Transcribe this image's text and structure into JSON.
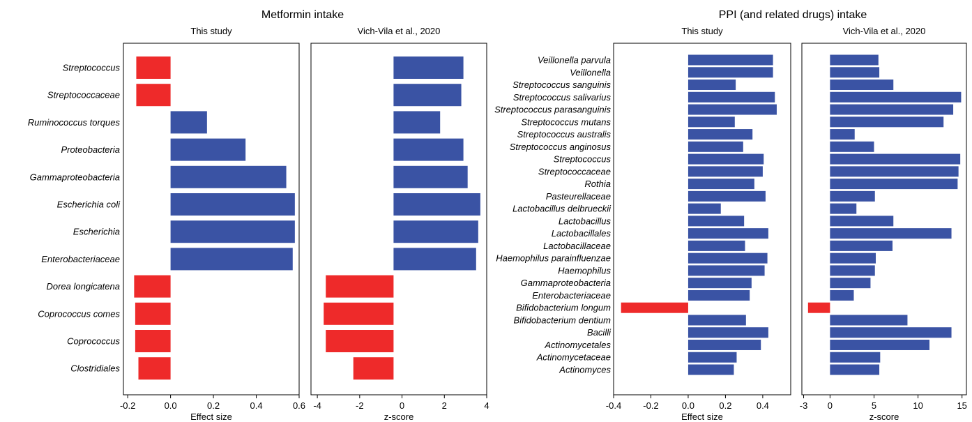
{
  "figure": {
    "left_title": "Metformin intake",
    "right_title": "PPI (and related drugs) intake"
  },
  "colors": {
    "positive": "#3a53a4",
    "negative": "#ee2a2a",
    "frame": "#000000"
  },
  "chart_data": [
    {
      "type": "bar",
      "orientation": "horizontal",
      "group": "Metformin intake",
      "title": "This study",
      "xlabel": "Effect size",
      "xlim": [
        -0.22,
        0.6
      ],
      "xticks": [
        -0.2,
        0.0,
        0.2,
        0.4,
        0.6
      ],
      "tick_labels": [
        "-0.2",
        "0.0",
        "0.2",
        "0.4",
        "0.6"
      ],
      "baseline": 0,
      "categories": [
        "Streptococcus",
        "Streptococcaceae",
        "Ruminococcus torques",
        "Proteobacteria",
        "Gammaproteobacteria",
        "Escherichia coli",
        "Escherichia",
        "Enterobacteriaceae",
        "Dorea longicatena",
        "Coprococcus comes",
        "Coprococcus",
        "Clostridiales"
      ],
      "values": [
        -0.16,
        -0.16,
        0.17,
        0.35,
        0.54,
        0.58,
        0.58,
        0.57,
        -0.17,
        -0.165,
        -0.165,
        -0.15
      ]
    },
    {
      "type": "bar",
      "orientation": "horizontal",
      "group": "Metformin intake",
      "title": "Vich-Vila et al., 2020",
      "xlabel": "z-score",
      "xlim": [
        -4.3,
        4.0
      ],
      "xticks": [
        -4,
        -2,
        0,
        2,
        4
      ],
      "tick_labels": [
        "-4",
        "-2",
        "0",
        "2",
        "4"
      ],
      "baseline": -0.4,
      "categories": [
        "Streptococcus",
        "Streptococcaceae",
        "Ruminococcus torques",
        "Proteobacteria",
        "Gammaproteobacteria",
        "Escherichia coli",
        "Escherichia",
        "Enterobacteriaceae",
        "Dorea longicatena",
        "Coprococcus comes",
        "Coprococcus",
        "Clostridiales"
      ],
      "values": [
        2.9,
        2.8,
        1.8,
        2.9,
        3.1,
        3.7,
        3.6,
        3.5,
        -3.6,
        -3.7,
        -3.6,
        -2.3
      ]
    },
    {
      "type": "bar",
      "orientation": "horizontal",
      "group": "PPI (and related drugs) intake",
      "title": "This study",
      "xlabel": "Effect size",
      "xlim": [
        -0.4,
        0.55
      ],
      "xticks": [
        -0.4,
        -0.2,
        0.0,
        0.2,
        0.4
      ],
      "tick_labels": [
        "-0.4",
        "-0.2",
        "0.0",
        "0.2",
        "0.4"
      ],
      "baseline": 0,
      "categories": [
        "Veillonella parvula",
        "Veillonella",
        "Streptococcus sanguinis",
        "Streptococcus salivarius",
        "Streptococcus parasanguinis",
        "Streptococcus mutans",
        "Streptococcus australis",
        "Streptococcus anginosus",
        "Streptococcus",
        "Streptococcaceae",
        "Rothia",
        "Pasteurellaceae",
        "Lactobacillus delbrueckii",
        "Lactobacillus",
        "Lactobacillales",
        "Lactobacillaceae",
        "Haemophilus parainfluenzae",
        "Haemophilus",
        "Gammaproteobacteria",
        "Enterobacteriaceae",
        "Bifidobacterium longum",
        "Bifidobacterium dentium",
        "Bacilli",
        "Actinomycetales",
        "Actinomycetaceae",
        "Actinomyces"
      ],
      "values": [
        0.455,
        0.455,
        0.255,
        0.465,
        0.475,
        0.25,
        0.345,
        0.295,
        0.405,
        0.4,
        0.355,
        0.415,
        0.175,
        0.3,
        0.43,
        0.305,
        0.425,
        0.41,
        0.34,
        0.33,
        -0.36,
        0.31,
        0.43,
        0.39,
        0.26,
        0.245
      ]
    },
    {
      "type": "bar",
      "orientation": "horizontal",
      "group": "PPI (and related drugs) intake",
      "title": "Vich-Vila et al., 2020",
      "xlabel": "z-score",
      "xlim": [
        -3.2,
        15.5
      ],
      "xticks": [
        -3,
        0,
        5,
        10,
        15
      ],
      "tick_labels": [
        "-3",
        "0",
        "5",
        "10",
        "15"
      ],
      "baseline": 0,
      "categories": [
        "Veillonella parvula",
        "Veillonella",
        "Streptococcus sanguinis",
        "Streptococcus salivarius",
        "Streptococcus parasanguinis",
        "Streptococcus mutans",
        "Streptococcus australis",
        "Streptococcus anginosus",
        "Streptococcus",
        "Streptococcaceae",
        "Rothia",
        "Pasteurellaceae",
        "Lactobacillus delbrueckii",
        "Lactobacillus",
        "Lactobacillales",
        "Lactobacillaceae",
        "Haemophilus parainfluenzae",
        "Haemophilus",
        "Gammaproteobacteria",
        "Enterobacteriaceae",
        "Bifidobacterium longum",
        "Bifidobacterium dentium",
        "Bacilli",
        "Actinomycetales",
        "Actinomycetaceae",
        "Actinomyces"
      ],
      "values": [
        5.5,
        5.6,
        7.2,
        14.9,
        14.0,
        12.9,
        2.8,
        5.0,
        14.8,
        14.6,
        14.5,
        5.1,
        3.0,
        7.2,
        13.8,
        7.1,
        5.2,
        5.1,
        4.6,
        2.7,
        -2.5,
        8.8,
        13.8,
        11.3,
        5.7,
        5.6
      ]
    }
  ]
}
